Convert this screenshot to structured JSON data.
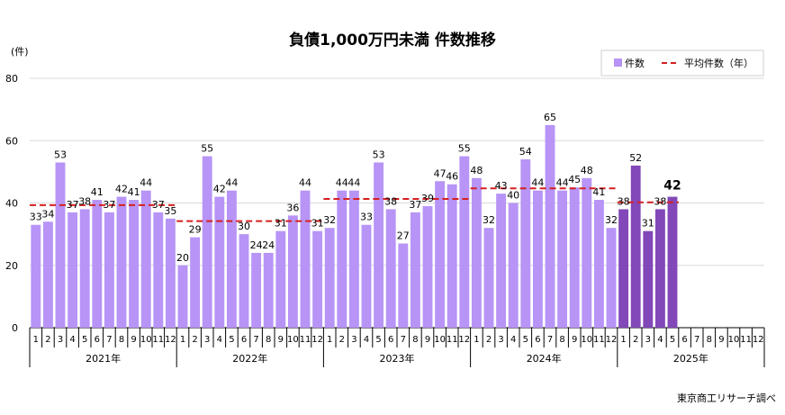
{
  "chart_data": {
    "type": "bar",
    "title": "負債1,000万円未満 件数推移",
    "ylabel": "(件)",
    "ylim": [
      0,
      80
    ],
    "yticks": [
      0,
      20,
      40,
      60,
      80
    ],
    "grid": true,
    "legend": {
      "position": "top-right",
      "bar_label": "件数",
      "line_label": "平均件数（年）"
    },
    "source": "東京商工リサーチ調べ",
    "years": [
      "2021年",
      "2022年",
      "2023年",
      "2024年",
      "2025年"
    ],
    "months": [
      "1",
      "2",
      "3",
      "4",
      "5",
      "6",
      "7",
      "8",
      "9",
      "10",
      "11",
      "12"
    ],
    "series": [
      {
        "name": "件数",
        "values": [
          33,
          34,
          53,
          37,
          38,
          41,
          37,
          42,
          41,
          44,
          37,
          35,
          20,
          29,
          55,
          42,
          44,
          30,
          24,
          24,
          31,
          36,
          44,
          31,
          32,
          44,
          44,
          33,
          53,
          38,
          27,
          37,
          39,
          47,
          46,
          55,
          48,
          32,
          43,
          40,
          54,
          44,
          65,
          44,
          45,
          48,
          41,
          32,
          38,
          52,
          31,
          38,
          42
        ]
      },
      {
        "name": "平均件数（年）",
        "values": [
          39.3,
          34.2,
          41.3,
          44.7,
          40.2
        ]
      }
    ],
    "colors": {
      "bar": "#B794F6",
      "bar_2025": "#8247B8",
      "avg_line": "#D42020",
      "grid": "#D9D9D9"
    }
  }
}
